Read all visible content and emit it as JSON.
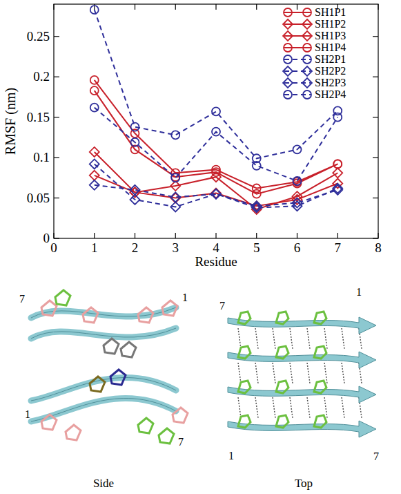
{
  "chart_data": {
    "type": "line",
    "x_label": "Residue",
    "y_label": "RMSF (nm)",
    "x": [
      1,
      2,
      3,
      4,
      5,
      6,
      7
    ],
    "xlim": [
      0,
      8
    ],
    "xticks": [
      0,
      1,
      2,
      3,
      4,
      5,
      6,
      7,
      8
    ],
    "ylim": [
      0,
      0.29
    ],
    "yticks": [
      0,
      0.05,
      0.1,
      0.15,
      0.2,
      0.25
    ],
    "legend": "top-right",
    "series": [
      {
        "name": "SH1P1",
        "color": "#c8202a",
        "marker": "circle",
        "line_style": "solid",
        "values": [
          0.183,
          0.11,
          0.076,
          0.082,
          0.055,
          0.068,
          0.092
        ]
      },
      {
        "name": "SH1P2",
        "color": "#c8202a",
        "marker": "diamond",
        "line_style": "solid",
        "values": [
          0.107,
          0.057,
          0.065,
          0.076,
          0.036,
          0.052,
          0.081
        ]
      },
      {
        "name": "SH1P3",
        "color": "#c8202a",
        "marker": "diamond",
        "line_style": "solid",
        "values": [
          0.078,
          0.057,
          0.05,
          0.056,
          0.04,
          0.048,
          0.068
        ]
      },
      {
        "name": "SH1P4",
        "color": "#c8202a",
        "marker": "circle",
        "line_style": "solid",
        "values": [
          0.196,
          0.13,
          0.081,
          0.085,
          0.062,
          0.07,
          0.092
        ]
      },
      {
        "name": "SH2P1",
        "color": "#2e2e9a",
        "marker": "circle",
        "line_style": "dashed",
        "values": [
          0.283,
          0.138,
          0.128,
          0.157,
          0.099,
          0.11,
          0.158
        ]
      },
      {
        "name": "SH2P2",
        "color": "#2e2e9a",
        "marker": "diamond",
        "line_style": "dashed",
        "values": [
          0.092,
          0.048,
          0.039,
          0.055,
          0.038,
          0.04,
          0.062
        ]
      },
      {
        "name": "SH2P3",
        "color": "#2e2e9a",
        "marker": "diamond",
        "line_style": "dashed",
        "values": [
          0.066,
          0.06,
          0.051,
          0.055,
          0.04,
          0.044,
          0.06
        ]
      },
      {
        "name": "SH2P4",
        "color": "#2e2e9a",
        "marker": "circle",
        "line_style": "dashed",
        "values": [
          0.162,
          0.119,
          0.075,
          0.132,
          0.09,
          0.071,
          0.15
        ]
      }
    ]
  },
  "structures": [
    {
      "caption": "Side",
      "labels": [
        "7",
        "1",
        "1",
        "7"
      ]
    },
    {
      "caption": "Top",
      "labels": [
        "1",
        "7",
        "1",
        "7"
      ]
    }
  ]
}
